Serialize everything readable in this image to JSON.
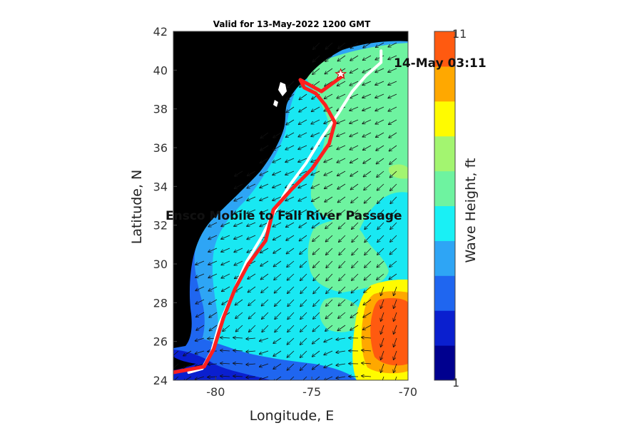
{
  "title": "Valid for 13-May-2022 1200 GMT",
  "route_label": "Ensco Mobile to Fall River Passage",
  "timestamp_label": "14-May 03:11",
  "x_axis": {
    "label": "Longitude, E",
    "range": [
      -82.2,
      -70
    ],
    "ticks": [
      -80,
      -75,
      -70
    ],
    "tick_labels": [
      "-80",
      "-75",
      "-70"
    ]
  },
  "y_axis": {
    "label": "Latitude, N",
    "range": [
      24,
      42
    ],
    "ticks": [
      24,
      26,
      28,
      30,
      32,
      34,
      36,
      38,
      40,
      42
    ],
    "tick_labels": [
      "24",
      "26",
      "28",
      "30",
      "32",
      "34",
      "36",
      "38",
      "40",
      "42"
    ]
  },
  "colorbar": {
    "label": "Wave Height, ft",
    "range": [
      1,
      11
    ],
    "tick_labels": [
      "1",
      "11"
    ],
    "bands": [
      "#00008f",
      "#0a1fcf",
      "#1f66f0",
      "#2ea5f5",
      "#19f0f5",
      "#6ef3a0",
      "#a3f570",
      "#fffb00",
      "#ffa800",
      "#ff5a10"
    ]
  },
  "colors": {
    "land": "#000000",
    "land_edge": "#1f3a9a",
    "planned_route": "#ff1f1f",
    "actual_track": "#ffffff"
  },
  "planned_route": [
    [
      -82.2,
      24.4
    ],
    [
      -80.6,
      24.7
    ],
    [
      -80.1,
      25.6
    ],
    [
      -79.6,
      27.2
    ],
    [
      -79.0,
      28.7
    ],
    [
      -78.3,
      30.0
    ],
    [
      -77.4,
      31.2
    ],
    [
      -77.0,
      32.8
    ],
    [
      -76.1,
      33.8
    ],
    [
      -75.0,
      34.9
    ],
    [
      -74.1,
      36.2
    ],
    [
      -73.8,
      37.3
    ],
    [
      -74.3,
      38.2
    ],
    [
      -74.8,
      38.8
    ],
    [
      -75.4,
      39.1
    ],
    [
      -75.6,
      39.5
    ],
    [
      -74.5,
      38.9
    ],
    [
      -73.4,
      39.7
    ]
  ],
  "actual_track": [
    [
      -81.4,
      24.4
    ],
    [
      -80.7,
      24.6
    ],
    [
      -80.2,
      25.5
    ],
    [
      -79.8,
      26.9
    ],
    [
      -79.1,
      28.5
    ],
    [
      -78.4,
      30.1
    ],
    [
      -77.6,
      31.4
    ],
    [
      -77.0,
      32.6
    ],
    [
      -76.2,
      34.0
    ],
    [
      -75.3,
      35.2
    ],
    [
      -74.5,
      36.5
    ],
    [
      -73.6,
      37.8
    ],
    [
      -72.9,
      38.9
    ],
    [
      -72.2,
      39.7
    ],
    [
      -71.4,
      40.4
    ],
    [
      -71.4,
      41.0
    ]
  ],
  "ship_marker": {
    "lon": -73.5,
    "lat": 39.8
  }
}
